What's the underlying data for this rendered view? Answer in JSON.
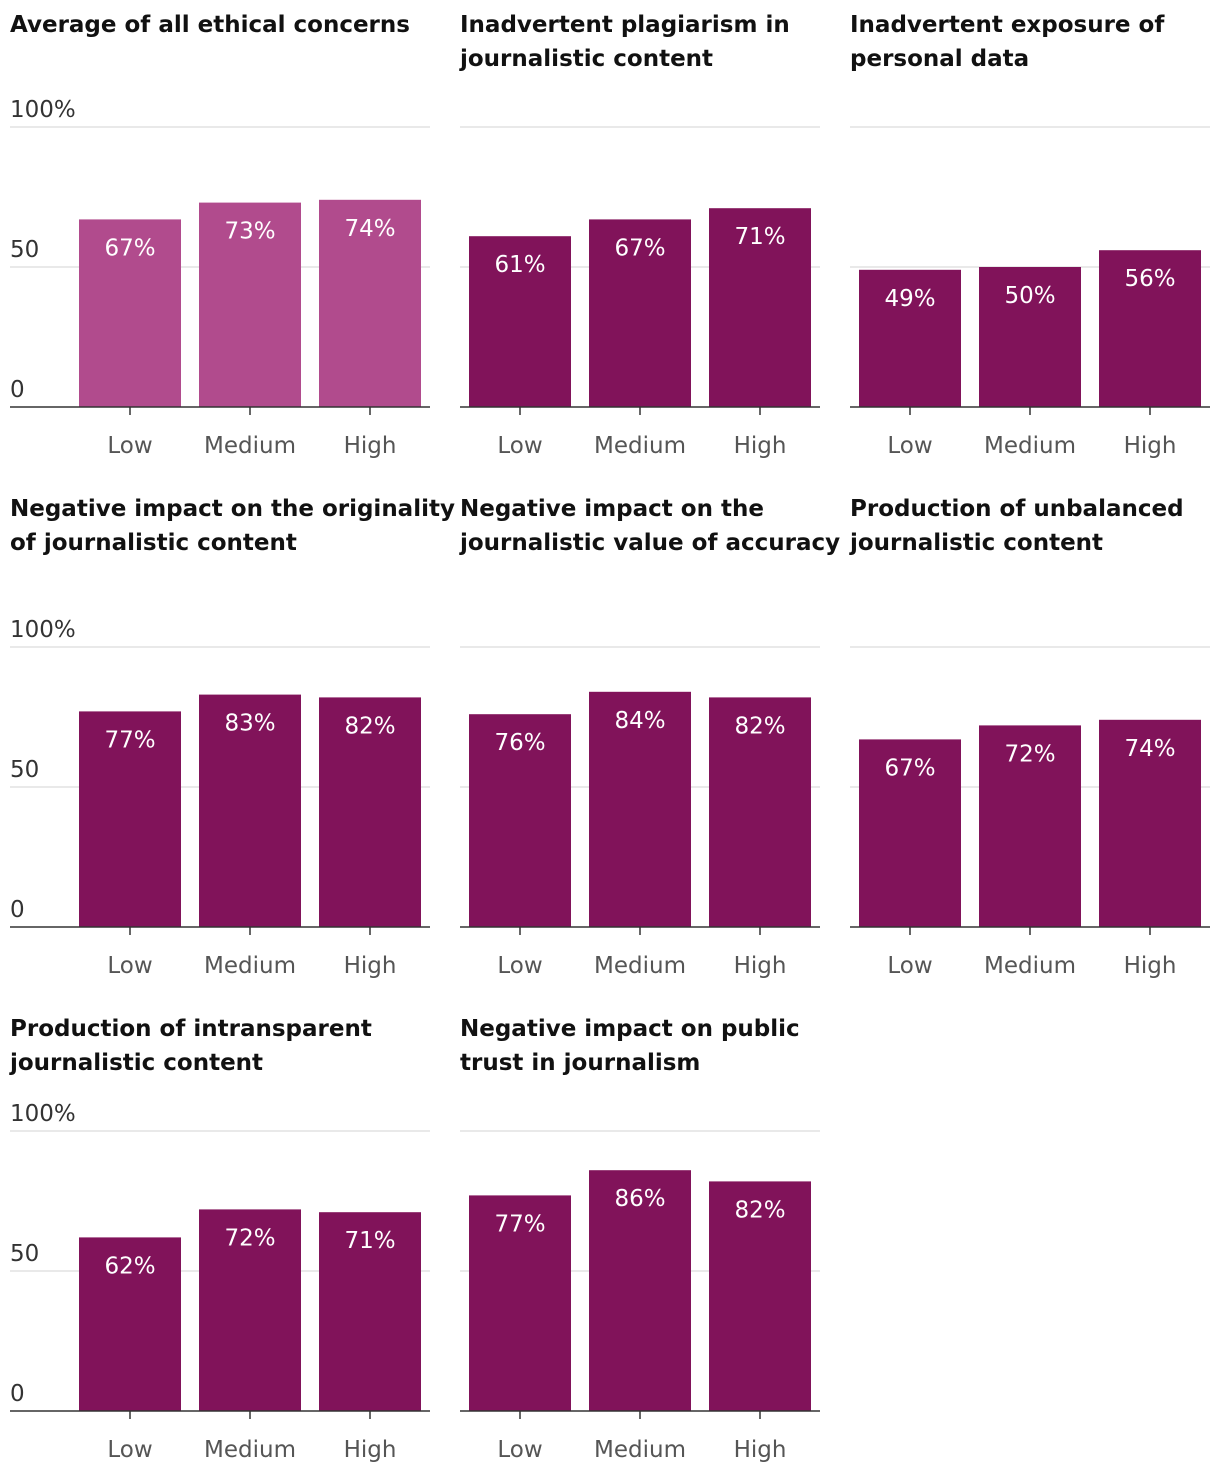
{
  "chart_data": [
    {
      "type": "bar",
      "title": "Average of all ethical concerns",
      "categories": [
        "Low",
        "Medium",
        "High"
      ],
      "values": [
        67,
        73,
        74
      ],
      "value_labels": [
        "67%",
        "73%",
        "74%"
      ],
      "ylim": [
        0,
        100
      ],
      "y_ticks": [
        "0",
        "50",
        "100%"
      ],
      "show_y_ticks": true,
      "color": "#b14b8d"
    },
    {
      "type": "bar",
      "title": "Inadvertent plagiarism in journalistic content",
      "categories": [
        "Low",
        "Medium",
        "High"
      ],
      "values": [
        61,
        67,
        71
      ],
      "value_labels": [
        "61%",
        "67%",
        "71%"
      ],
      "ylim": [
        0,
        100
      ],
      "y_ticks": [],
      "show_y_ticks": false,
      "color": "#81135a"
    },
    {
      "type": "bar",
      "title": "Inadvertent exposure of personal data",
      "categories": [
        "Low",
        "Medium",
        "High"
      ],
      "values": [
        49,
        50,
        56
      ],
      "value_labels": [
        "49%",
        "50%",
        "56%"
      ],
      "ylim": [
        0,
        100
      ],
      "y_ticks": [],
      "show_y_ticks": false,
      "color": "#81135a"
    },
    {
      "type": "bar",
      "title": "Negative impact on the originality of journalistic content",
      "categories": [
        "Low",
        "Medium",
        "High"
      ],
      "values": [
        77,
        83,
        82
      ],
      "value_labels": [
        "77%",
        "83%",
        "82%"
      ],
      "ylim": [
        0,
        100
      ],
      "y_ticks": [
        "0",
        "50",
        "100%"
      ],
      "show_y_ticks": true,
      "color": "#81135a"
    },
    {
      "type": "bar",
      "title": "Negative impact on the journalistic value of accuracy",
      "categories": [
        "Low",
        "Medium",
        "High"
      ],
      "values": [
        76,
        84,
        82
      ],
      "value_labels": [
        "76%",
        "84%",
        "82%"
      ],
      "ylim": [
        0,
        100
      ],
      "y_ticks": [],
      "show_y_ticks": false,
      "color": "#81135a"
    },
    {
      "type": "bar",
      "title": "Production of unbalanced journalistic content",
      "categories": [
        "Low",
        "Medium",
        "High"
      ],
      "values": [
        67,
        72,
        74
      ],
      "value_labels": [
        "67%",
        "72%",
        "74%"
      ],
      "ylim": [
        0,
        100
      ],
      "y_ticks": [],
      "show_y_ticks": false,
      "color": "#81135a"
    },
    {
      "type": "bar",
      "title": "Production of intransparent journalistic content",
      "categories": [
        "Low",
        "Medium",
        "High"
      ],
      "values": [
        62,
        72,
        71
      ],
      "value_labels": [
        "62%",
        "72%",
        "71%"
      ],
      "ylim": [
        0,
        100
      ],
      "y_ticks": [
        "0",
        "50",
        "100%"
      ],
      "show_y_ticks": true,
      "color": "#81135a"
    },
    {
      "type": "bar",
      "title": "Negative impact on public trust in journalism",
      "categories": [
        "Low",
        "Medium",
        "High"
      ],
      "values": [
        77,
        86,
        82
      ],
      "value_labels": [
        "77%",
        "86%",
        "82%"
      ],
      "ylim": [
        0,
        100
      ],
      "y_ticks": [],
      "show_y_ticks": false,
      "color": "#81135a"
    }
  ]
}
